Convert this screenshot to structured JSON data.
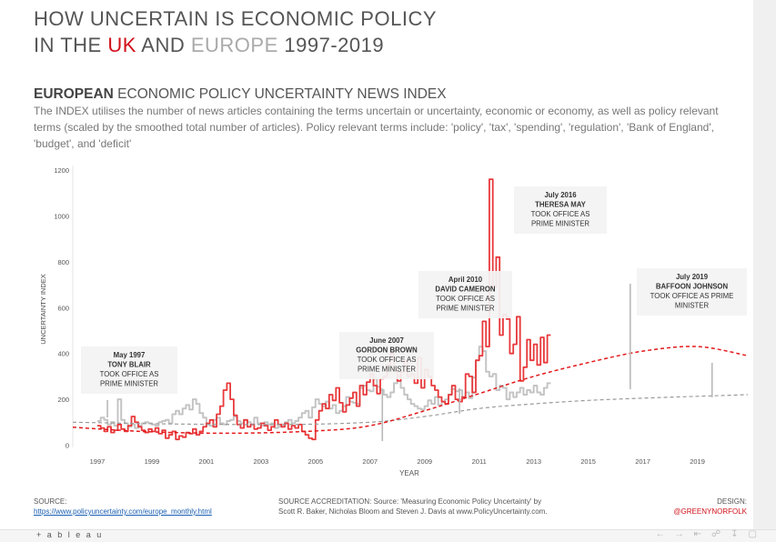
{
  "title": {
    "line1": "HOW UNCERTAIN IS ECONOMIC POLICY",
    "in_the": "IN THE ",
    "uk": "UK",
    "and": " AND ",
    "europe": "EUROPE",
    "years": " 1997-2019"
  },
  "subtitle": {
    "bold": "EUROPEAN",
    "rest": " ECONOMIC POLICY UNCERTAINTY NEWS INDEX"
  },
  "description": "The INDEX utilises the number of news articles containing the terms uncertain or uncertainty, economic or economy, as well as policy relevant terms (scaled by the smoothed total number of articles). Policy relevant terms include: 'policy', 'tax', 'spending', 'regulation', 'Bank of England', 'budget', and 'deficit'",
  "footer": {
    "source_label": "SOURCE:",
    "source_url": "https://www.policyuncertainty.com/europe_monthly.html",
    "accreditation_1": "SOURCE ACCREDITATION: Source: 'Measuring Economic Policy Uncertainty' by",
    "accreditation_2": "Scott R. Baker, Nicholas Bloom and Steven J. Davis at www.PolicyUncertainty.com.",
    "design_label": "DESIGN:",
    "design_credit": "@GREENYNORFOLK"
  },
  "toolbar": {
    "logo": "+ a b l e a u",
    "icons": [
      "undo-icon",
      "redo-icon",
      "revert-icon",
      "share-icon",
      "download-icon",
      "fullscreen-icon"
    ]
  },
  "colors": {
    "uk": "#d0111b",
    "europe": "#aaaaaa",
    "uk_line": "#e8393b",
    "uk_trend": "#e31a1c",
    "eu_line": "#c4c4c4",
    "eu_trend": "#9a9a9a"
  },
  "chart_data": {
    "type": "line",
    "xlabel": "YEAR",
    "ylabel": "UNCERTAINTY INDEX",
    "ylim": [
      -10,
      1220
    ],
    "yticks": [
      0,
      200,
      400,
      600,
      800,
      1000,
      1200
    ],
    "xticks": [
      1997,
      1999,
      2001,
      2003,
      2005,
      2007,
      2009,
      2011,
      2013,
      2015,
      2017,
      2019
    ],
    "x_domain": [
      1996.1,
      2020.85
    ],
    "grid": false,
    "series": [
      {
        "name": "UK",
        "step": true,
        "x_start": 1997.0,
        "x_step": 0.125,
        "values": [
          85,
          75,
          60,
          80,
          55,
          65,
          90,
          70,
          60,
          85,
          125,
          100,
          80,
          65,
          55,
          70,
          60,
          75,
          50,
          65,
          30,
          45,
          60,
          25,
          40,
          35,
          55,
          50,
          70,
          45,
          60,
          80,
          95,
          110,
          80,
          135,
          170,
          240,
          270,
          200,
          130,
          90,
          75,
          110,
          80,
          90,
          70,
          75,
          95,
          85,
          65,
          80,
          110,
          90,
          80,
          95,
          70,
          85,
          75,
          90,
          60,
          45,
          30,
          25,
          110,
          150,
          180,
          160,
          220,
          195,
          250,
          185,
          145,
          175,
          205,
          230,
          170,
          260,
          220,
          275,
          310,
          260,
          225,
          290,
          300,
          350,
          400,
          330,
          280,
          320,
          370,
          300,
          310,
          270,
          380,
          250,
          330,
          300,
          260,
          240,
          210,
          190,
          180,
          220,
          260,
          200,
          190,
          210,
          310,
          300,
          230,
          370,
          390,
          540,
          430,
          1160,
          690,
          820,
          480,
          570,
          550,
          400,
          440,
          560,
          280,
          340,
          460,
          370,
          440,
          350,
          470,
          360,
          480
        ]
      },
      {
        "name": "EUROPE",
        "step": true,
        "x_start": 1997.0,
        "x_step": 0.125,
        "values": [
          105,
          120,
          110,
          90,
          100,
          85,
          200,
          110,
          95,
          80,
          90,
          75,
          85,
          95,
          100,
          95,
          90,
          85,
          100,
          105,
          110,
          95,
          135,
          150,
          135,
          160,
          175,
          155,
          200,
          180,
          140,
          120,
          90,
          85,
          110,
          120,
          95,
          90,
          105,
          110,
          125,
          105,
          95,
          110,
          100,
          90,
          120,
          95,
          85,
          100,
          90,
          95,
          75,
          80,
          90,
          100,
          110,
          95,
          105,
          120,
          140,
          150,
          120,
          165,
          200,
          180,
          170,
          190,
          160,
          175,
          140,
          150,
          170,
          210,
          190,
          185,
          180,
          250,
          260,
          240,
          235,
          290,
          255,
          240,
          220,
          210,
          230,
          270,
          300,
          250,
          220,
          200,
          180,
          170,
          160,
          155,
          170,
          195,
          180,
          210,
          175,
          190,
          200,
          220,
          245,
          235,
          240,
          210,
          230,
          205,
          295,
          370,
          430,
          410,
          320,
          300,
          310,
          240,
          260,
          250,
          200,
          230,
          210,
          230,
          250,
          220,
          240,
          230,
          260,
          230,
          220,
          250,
          270
        ]
      },
      {
        "name": "UK trend",
        "dashed": true,
        "x": [
          1996.1,
          1999,
          2002,
          2005,
          2007,
          2009,
          2011,
          2013,
          2015,
          2017,
          2019,
          2020.85
        ],
        "values": [
          78,
          58,
          52,
          62,
          85,
          150,
          225,
          300,
          360,
          410,
          430,
          390
        ]
      },
      {
        "name": "EUROPE trend",
        "dashed": true,
        "x": [
          1996.1,
          2000,
          2004,
          2007,
          2009,
          2011,
          2013,
          2015,
          2017,
          2019,
          2020.85
        ],
        "values": [
          100,
          92,
          90,
          100,
          125,
          160,
          180,
          195,
          205,
          213,
          220
        ]
      }
    ],
    "annotations": [
      {
        "date": "May 1997",
        "name": "TONY BLAIR",
        "text1": "TOOK OFFICE AS",
        "text2": "PRIME MINISTER",
        "x": 1997.37
      },
      {
        "date": "June 2007",
        "name": "GORDON BROWN",
        "text1": "TOOK OFFICE AS",
        "text2": "PRIME MINISTER",
        "x": 2007.45
      },
      {
        "date": "April 2010",
        "name": "DAVID CAMERON",
        "text1": "TOOK OFFICE AS",
        "text2": "PRIME MINISTER",
        "x": 2010.28
      },
      {
        "date": "July 2016",
        "name": "THERESA MAY",
        "text1": "TOOK OFFICE AS",
        "text2": "PRIME MINISTER",
        "x": 2016.54
      },
      {
        "date": "July 2019",
        "name": "BAFFOON JOHNSON",
        "text1": "TOOK OFFICE AS PRIME",
        "text2": "MINISTER",
        "x": 2019.54
      }
    ]
  }
}
